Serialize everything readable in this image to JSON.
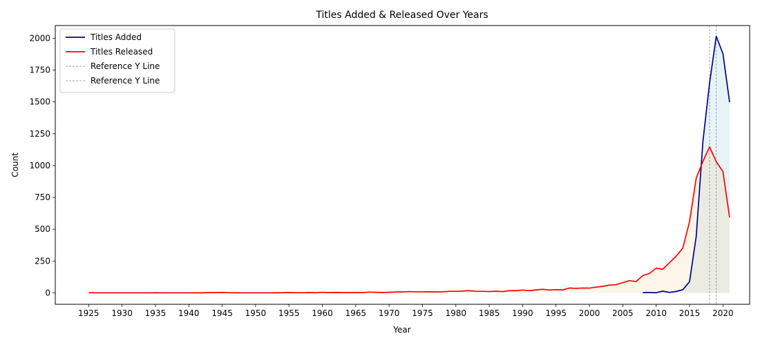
{
  "chart_data": {
    "type": "line",
    "title": "Titles Added & Released Over Years",
    "xlabel": "Year",
    "ylabel": "Count",
    "xlim": [
      1920,
      2024
    ],
    "ylim": [
      -90,
      2100
    ],
    "x_ticks": [
      1925,
      1930,
      1935,
      1940,
      1945,
      1950,
      1955,
      1960,
      1965,
      1970,
      1975,
      1980,
      1985,
      1990,
      1995,
      2000,
      2005,
      2010,
      2015,
      2020
    ],
    "y_ticks": [
      0,
      250,
      500,
      750,
      1000,
      1250,
      1500,
      1750,
      2000
    ],
    "grid": false,
    "legend_position": "top-left",
    "series": [
      {
        "name": "Titles Added",
        "color": "#00008b",
        "fill": "#add8e6",
        "x": [
          2008,
          2009,
          2010,
          2011,
          2012,
          2013,
          2014,
          2015,
          2016,
          2017,
          2018,
          2019,
          2020,
          2021
        ],
        "values": [
          2,
          2,
          1,
          13,
          3,
          11,
          25,
          88,
          443,
          1188,
          1649,
          2016,
          1879,
          1498
        ]
      },
      {
        "name": "Titles Released",
        "color": "#ff0000",
        "fill": "#f5deb3",
        "x": [
          1925,
          1926,
          1927,
          1928,
          1929,
          1930,
          1931,
          1932,
          1933,
          1934,
          1935,
          1936,
          1937,
          1938,
          1939,
          1940,
          1941,
          1942,
          1943,
          1944,
          1945,
          1946,
          1947,
          1948,
          1949,
          1950,
          1951,
          1952,
          1953,
          1954,
          1955,
          1956,
          1957,
          1958,
          1959,
          1960,
          1961,
          1962,
          1963,
          1964,
          1965,
          1966,
          1967,
          1968,
          1969,
          1970,
          1971,
          1972,
          1973,
          1974,
          1975,
          1976,
          1977,
          1978,
          1979,
          1980,
          1981,
          1982,
          1983,
          1984,
          1985,
          1986,
          1987,
          1988,
          1989,
          1990,
          1991,
          1992,
          1993,
          1994,
          1995,
          1996,
          1997,
          1998,
          1999,
          2000,
          2001,
          2002,
          2003,
          2004,
          2005,
          2006,
          2007,
          2008,
          2009,
          2010,
          2011,
          2012,
          2013,
          2014,
          2015,
          2016,
          2017,
          2018,
          2019,
          2020,
          2021
        ],
        "values": [
          1,
          0,
          0,
          0,
          0,
          0,
          0,
          0,
          0,
          0,
          1,
          0,
          0,
          0,
          0,
          0,
          0,
          0,
          2,
          2,
          3,
          1,
          0,
          0,
          0,
          0,
          0,
          0,
          0,
          1,
          2,
          1,
          1,
          2,
          1,
          4,
          2,
          3,
          2,
          2,
          2,
          2,
          6,
          4,
          3,
          4,
          7,
          7,
          10,
          8,
          8,
          9,
          7,
          8,
          12,
          12,
          14,
          17,
          12,
          12,
          10,
          13,
          10,
          17,
          17,
          22,
          17,
          23,
          28,
          22,
          25,
          23,
          38,
          35,
          38,
          37,
          45,
          51,
          61,
          64,
          80,
          96,
          88,
          136,
          152,
          194,
          185,
          237,
          288,
          352,
          560,
          902,
          1032,
          1147,
          1030,
          953,
          592
        ]
      }
    ],
    "reference_lines": [
      {
        "label": "Reference Y Line",
        "x": 2018,
        "color": "#808080",
        "style": "dashed"
      },
      {
        "label": "Reference Y Line",
        "x": 2019,
        "color": "#808080",
        "style": "dashed"
      }
    ]
  }
}
